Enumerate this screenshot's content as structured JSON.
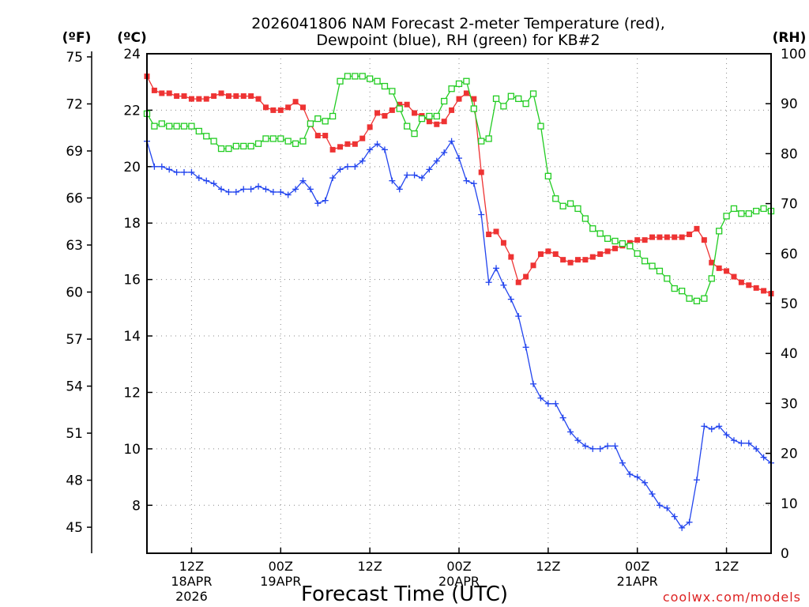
{
  "chart_data": {
    "type": "line",
    "title_line1": "2026041806 NAM Forecast 2-meter Temperature (red),",
    "title_line2": "Dewpoint (blue), RH (green) for KB#2",
    "xlabel": "Forecast Time (UTC)",
    "unit_f": "(ºF)",
    "unit_c": "(ºC)",
    "unit_rh": "(RH)",
    "credit": "coolwx.com/models",
    "x_hours_range": [
      0,
      84
    ],
    "celsius_range": [
      6.3,
      24.0
    ],
    "rh_range": [
      0,
      100
    ],
    "fahrenheit_ticks": [
      75,
      72,
      69,
      66,
      63,
      60,
      57,
      54,
      51,
      48,
      45
    ],
    "celsius_ticks": [
      24,
      22,
      20,
      18,
      16,
      14,
      12,
      10,
      8
    ],
    "rh_ticks": [
      100,
      90,
      80,
      70,
      60,
      50,
      40,
      30,
      20,
      10,
      0
    ],
    "x_ticks": [
      {
        "hour": 6,
        "l1": "12Z",
        "l2": "18APR",
        "l3": "2026"
      },
      {
        "hour": 18,
        "l1": "00Z",
        "l2": "19APR",
        "l3": ""
      },
      {
        "hour": 30,
        "l1": "12Z",
        "l2": "",
        "l3": ""
      },
      {
        "hour": 42,
        "l1": "00Z",
        "l2": "20APR",
        "l3": ""
      },
      {
        "hour": 54,
        "l1": "12Z",
        "l2": "",
        "l3": ""
      },
      {
        "hour": 66,
        "l1": "00Z",
        "l2": "21APR",
        "l3": ""
      },
      {
        "hour": 78,
        "l1": "12Z",
        "l2": "",
        "l3": ""
      }
    ],
    "series": [
      {
        "key": "temperature",
        "color": "#ee3333",
        "marker": "filled-square",
        "axis": "celsius",
        "values": [
          [
            0,
            23.2
          ],
          [
            1,
            22.7
          ],
          [
            2,
            22.6
          ],
          [
            3,
            22.6
          ],
          [
            4,
            22.5
          ],
          [
            5,
            22.5
          ],
          [
            6,
            22.4
          ],
          [
            7,
            22.4
          ],
          [
            8,
            22.4
          ],
          [
            9,
            22.5
          ],
          [
            10,
            22.6
          ],
          [
            11,
            22.5
          ],
          [
            12,
            22.5
          ],
          [
            13,
            22.5
          ],
          [
            14,
            22.5
          ],
          [
            15,
            22.4
          ],
          [
            16,
            22.1
          ],
          [
            17,
            22.0
          ],
          [
            18,
            22.0
          ],
          [
            19,
            22.1
          ],
          [
            20,
            22.3
          ],
          [
            21,
            22.1
          ],
          [
            22,
            21.5
          ],
          [
            23,
            21.1
          ],
          [
            24,
            21.1
          ],
          [
            25,
            20.6
          ],
          [
            26,
            20.7
          ],
          [
            27,
            20.8
          ],
          [
            28,
            20.8
          ],
          [
            29,
            21.0
          ],
          [
            30,
            21.4
          ],
          [
            31,
            21.9
          ],
          [
            32,
            21.8
          ],
          [
            33,
            22.0
          ],
          [
            34,
            22.2
          ],
          [
            35,
            22.2
          ],
          [
            36,
            21.9
          ],
          [
            37,
            21.8
          ],
          [
            38,
            21.6
          ],
          [
            39,
            21.5
          ],
          [
            40,
            21.6
          ],
          [
            41,
            22.0
          ],
          [
            42,
            22.4
          ],
          [
            43,
            22.6
          ],
          [
            44,
            22.4
          ],
          [
            45,
            19.8
          ],
          [
            46,
            17.6
          ],
          [
            47,
            17.7
          ],
          [
            48,
            17.3
          ],
          [
            49,
            16.8
          ],
          [
            50,
            15.9
          ],
          [
            51,
            16.1
          ],
          [
            52,
            16.5
          ],
          [
            53,
            16.9
          ],
          [
            54,
            17.0
          ],
          [
            55,
            16.9
          ],
          [
            56,
            16.7
          ],
          [
            57,
            16.6
          ],
          [
            58,
            16.7
          ],
          [
            59,
            16.7
          ],
          [
            60,
            16.8
          ],
          [
            61,
            16.9
          ],
          [
            62,
            17.0
          ],
          [
            63,
            17.1
          ],
          [
            64,
            17.2
          ],
          [
            65,
            17.3
          ],
          [
            66,
            17.4
          ],
          [
            67,
            17.4
          ],
          [
            68,
            17.5
          ],
          [
            69,
            17.5
          ],
          [
            70,
            17.5
          ],
          [
            71,
            17.5
          ],
          [
            72,
            17.5
          ],
          [
            73,
            17.6
          ],
          [
            74,
            17.8
          ],
          [
            75,
            17.4
          ],
          [
            76,
            16.6
          ],
          [
            77,
            16.4
          ],
          [
            78,
            16.3
          ],
          [
            79,
            16.1
          ],
          [
            80,
            15.9
          ],
          [
            81,
            15.8
          ],
          [
            82,
            15.7
          ],
          [
            83,
            15.6
          ],
          [
            84,
            15.5
          ]
        ]
      },
      {
        "key": "dewpoint",
        "color": "#2244ee",
        "marker": "plus",
        "axis": "celsius",
        "values": [
          [
            0,
            20.9
          ],
          [
            1,
            20.0
          ],
          [
            2,
            20.0
          ],
          [
            3,
            19.9
          ],
          [
            4,
            19.8
          ],
          [
            5,
            19.8
          ],
          [
            6,
            19.8
          ],
          [
            7,
            19.6
          ],
          [
            8,
            19.5
          ],
          [
            9,
            19.4
          ],
          [
            10,
            19.2
          ],
          [
            11,
            19.1
          ],
          [
            12,
            19.1
          ],
          [
            13,
            19.2
          ],
          [
            14,
            19.2
          ],
          [
            15,
            19.3
          ],
          [
            16,
            19.2
          ],
          [
            17,
            19.1
          ],
          [
            18,
            19.1
          ],
          [
            19,
            19.0
          ],
          [
            20,
            19.2
          ],
          [
            21,
            19.5
          ],
          [
            22,
            19.2
          ],
          [
            23,
            18.7
          ],
          [
            24,
            18.8
          ],
          [
            25,
            19.6
          ],
          [
            26,
            19.9
          ],
          [
            27,
            20.0
          ],
          [
            28,
            20.0
          ],
          [
            29,
            20.2
          ],
          [
            30,
            20.6
          ],
          [
            31,
            20.8
          ],
          [
            32,
            20.6
          ],
          [
            33,
            19.5
          ],
          [
            34,
            19.2
          ],
          [
            35,
            19.7
          ],
          [
            36,
            19.7
          ],
          [
            37,
            19.6
          ],
          [
            38,
            19.9
          ],
          [
            39,
            20.2
          ],
          [
            40,
            20.5
          ],
          [
            41,
            20.9
          ],
          [
            42,
            20.3
          ],
          [
            43,
            19.5
          ],
          [
            44,
            19.4
          ],
          [
            45,
            18.3
          ],
          [
            46,
            15.9
          ],
          [
            47,
            16.4
          ],
          [
            48,
            15.8
          ],
          [
            49,
            15.3
          ],
          [
            50,
            14.7
          ],
          [
            51,
            13.6
          ],
          [
            52,
            12.3
          ],
          [
            53,
            11.8
          ],
          [
            54,
            11.6
          ],
          [
            55,
            11.6
          ],
          [
            56,
            11.1
          ],
          [
            57,
            10.6
          ],
          [
            58,
            10.3
          ],
          [
            59,
            10.1
          ],
          [
            60,
            10.0
          ],
          [
            61,
            10.0
          ],
          [
            62,
            10.1
          ],
          [
            63,
            10.1
          ],
          [
            64,
            9.5
          ],
          [
            65,
            9.1
          ],
          [
            66,
            9.0
          ],
          [
            67,
            8.8
          ],
          [
            68,
            8.4
          ],
          [
            69,
            8.0
          ],
          [
            70,
            7.9
          ],
          [
            71,
            7.6
          ],
          [
            72,
            7.2
          ],
          [
            73,
            7.4
          ],
          [
            74,
            8.9
          ],
          [
            75,
            10.8
          ],
          [
            76,
            10.7
          ],
          [
            77,
            10.8
          ],
          [
            78,
            10.5
          ],
          [
            79,
            10.3
          ],
          [
            80,
            10.2
          ],
          [
            81,
            10.2
          ],
          [
            82,
            10.0
          ],
          [
            83,
            9.7
          ],
          [
            84,
            9.5
          ]
        ]
      },
      {
        "key": "rh",
        "color": "#22cc22",
        "marker": "open-square",
        "axis": "rh",
        "values": [
          [
            0,
            88
          ],
          [
            1,
            85.5
          ],
          [
            2,
            86
          ],
          [
            3,
            85.5
          ],
          [
            4,
            85.5
          ],
          [
            5,
            85.5
          ],
          [
            6,
            85.5
          ],
          [
            7,
            84.5
          ],
          [
            8,
            83.5
          ],
          [
            9,
            82.5
          ],
          [
            10,
            81
          ],
          [
            11,
            81
          ],
          [
            12,
            81.5
          ],
          [
            13,
            81.5
          ],
          [
            14,
            81.5
          ],
          [
            15,
            82
          ],
          [
            16,
            83
          ],
          [
            17,
            83
          ],
          [
            18,
            83
          ],
          [
            19,
            82.5
          ],
          [
            20,
            82
          ],
          [
            21,
            82.5
          ],
          [
            22,
            86
          ],
          [
            23,
            87
          ],
          [
            24,
            86.5
          ],
          [
            25,
            87.5
          ],
          [
            26,
            94.5
          ],
          [
            27,
            95.5
          ],
          [
            28,
            95.5
          ],
          [
            29,
            95.5
          ],
          [
            30,
            95
          ],
          [
            31,
            94.5
          ],
          [
            32,
            93.5
          ],
          [
            33,
            92.5
          ],
          [
            34,
            89
          ],
          [
            35,
            85.5
          ],
          [
            36,
            84
          ],
          [
            37,
            87
          ],
          [
            38,
            87.5
          ],
          [
            39,
            87.5
          ],
          [
            40,
            90.5
          ],
          [
            41,
            93
          ],
          [
            42,
            94
          ],
          [
            43,
            94.5
          ],
          [
            44,
            89
          ],
          [
            45,
            82.5
          ],
          [
            46,
            83
          ],
          [
            47,
            91
          ],
          [
            48,
            89.5
          ],
          [
            49,
            91.5
          ],
          [
            50,
            91
          ],
          [
            51,
            90
          ],
          [
            52,
            92
          ],
          [
            53,
            85.5
          ],
          [
            54,
            75.5
          ],
          [
            55,
            71
          ],
          [
            56,
            69.5
          ],
          [
            57,
            70
          ],
          [
            58,
            69
          ],
          [
            59,
            67
          ],
          [
            60,
            65
          ],
          [
            61,
            64
          ],
          [
            62,
            63
          ],
          [
            63,
            62.5
          ],
          [
            64,
            62
          ],
          [
            65,
            61.5
          ],
          [
            66,
            60
          ],
          [
            67,
            58.5
          ],
          [
            68,
            57.5
          ],
          [
            69,
            56.5
          ],
          [
            70,
            55
          ],
          [
            71,
            53
          ],
          [
            72,
            52.5
          ],
          [
            73,
            51
          ],
          [
            74,
            50.5
          ],
          [
            75,
            51
          ],
          [
            76,
            55
          ],
          [
            77,
            64.5
          ],
          [
            78,
            67.5
          ],
          [
            79,
            69
          ],
          [
            80,
            68
          ],
          [
            81,
            68
          ],
          [
            82,
            68.5
          ],
          [
            83,
            69
          ],
          [
            84,
            68.5
          ]
        ]
      }
    ]
  }
}
